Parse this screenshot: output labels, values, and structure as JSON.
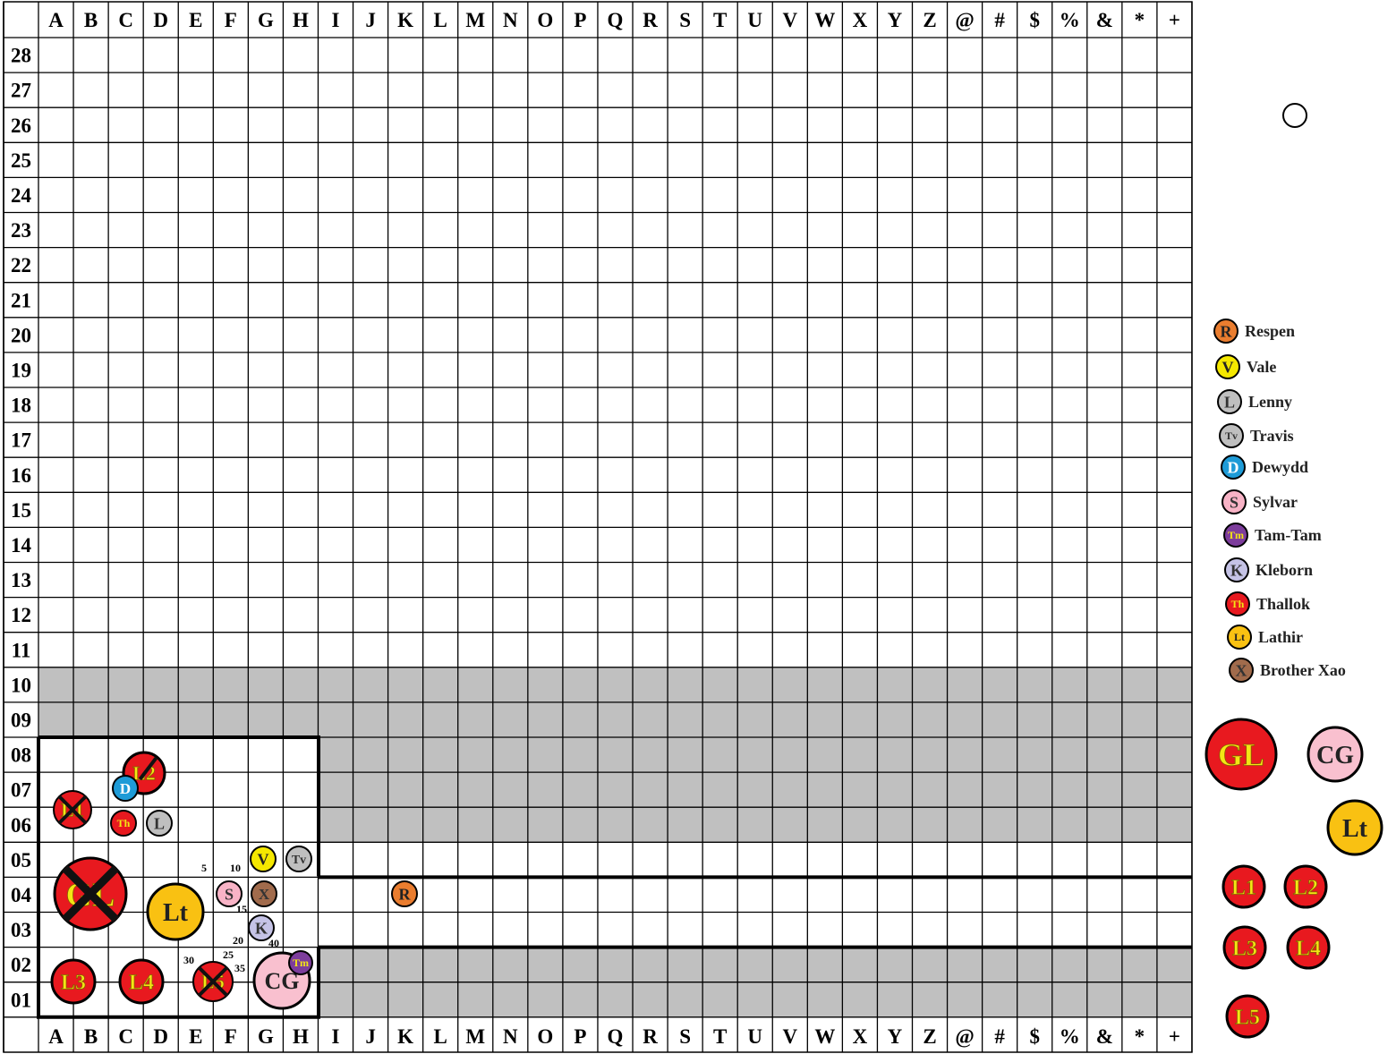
{
  "columns": [
    "A",
    "B",
    "C",
    "D",
    "E",
    "F",
    "G",
    "H",
    "I",
    "J",
    "K",
    "L",
    "M",
    "N",
    "O",
    "P",
    "Q",
    "R",
    "S",
    "T",
    "U",
    "V",
    "W",
    "X",
    "Y",
    "Z",
    "@",
    "#",
    "$",
    "%",
    "&",
    "*",
    "+"
  ],
  "rows": [
    "28",
    "27",
    "26",
    "25",
    "24",
    "23",
    "22",
    "21",
    "20",
    "19",
    "18",
    "17",
    "16",
    "15",
    "14",
    "13",
    "12",
    "11",
    "10",
    "09",
    "08",
    "07",
    "06",
    "05",
    "04",
    "03",
    "02",
    "01"
  ],
  "shaded_rows": [
    "10",
    "09"
  ],
  "colors": {
    "grid_line": "#000000",
    "shade": "#c0c0c0",
    "red_token": "#e8191f",
    "gold_text": "#f3e614",
    "respen": "#ea7d2f",
    "vale": "#f5e800",
    "grey_token": "#bfbfbf",
    "dewydd": "#1e9bd7",
    "sylvar": "#f8b3c6",
    "tamtam": "#7d3d9c",
    "kleborn": "#c5c3e6",
    "lathir": "#f9c112",
    "brother_xao": "#a16b4c",
    "cg": "#f9c0cf"
  },
  "range_markers": [
    "5",
    "10",
    "15",
    "20",
    "25",
    "30",
    "35",
    "40"
  ],
  "board_tokens": [
    {
      "id": "L1",
      "label": "L1",
      "defeated": true
    },
    {
      "id": "L2",
      "label": "L2",
      "defeated": true
    },
    {
      "id": "GL",
      "label": "GL",
      "defeated": true
    },
    {
      "id": "L3",
      "label": "L3",
      "defeated": false
    },
    {
      "id": "L4",
      "label": "L4",
      "defeated": false
    },
    {
      "id": "L5",
      "label": "L5",
      "defeated": true
    },
    {
      "id": "Lt",
      "label": "Lt",
      "defeated": false
    },
    {
      "id": "CG",
      "label": "CG",
      "defeated": false
    },
    {
      "id": "D",
      "label": "D"
    },
    {
      "id": "Th",
      "label": "Th"
    },
    {
      "id": "L",
      "label": "L"
    },
    {
      "id": "V",
      "label": "V"
    },
    {
      "id": "Tv",
      "label": "Tv"
    },
    {
      "id": "S",
      "label": "S"
    },
    {
      "id": "X",
      "label": "X"
    },
    {
      "id": "K",
      "label": "K"
    },
    {
      "id": "Tm",
      "label": "Tm"
    },
    {
      "id": "R",
      "label": "R"
    }
  ],
  "legend": [
    {
      "id": "respen",
      "symbol": "R",
      "name": "Respen"
    },
    {
      "id": "vale",
      "symbol": "V",
      "name": "Vale"
    },
    {
      "id": "lenny",
      "symbol": "L",
      "name": "Lenny"
    },
    {
      "id": "travis",
      "symbol": "Tv",
      "name": "Travis"
    },
    {
      "id": "dewydd",
      "symbol": "D",
      "name": "Dewydd"
    },
    {
      "id": "sylvar",
      "symbol": "S",
      "name": "Sylvar"
    },
    {
      "id": "tamtam",
      "symbol": "Tm",
      "name": "Tam-Tam"
    },
    {
      "id": "kleborn",
      "symbol": "K",
      "name": "Kleborn"
    },
    {
      "id": "thallok",
      "symbol": "Th",
      "name": "Thallok"
    },
    {
      "id": "lathir",
      "symbol": "Lt",
      "name": "Lathir"
    },
    {
      "id": "brother_xao",
      "symbol": "X",
      "name": "Brother Xao"
    }
  ],
  "reserve_tokens": [
    "GL",
    "CG",
    "Lt",
    "L1",
    "L2",
    "L3",
    "L4",
    "L5"
  ]
}
